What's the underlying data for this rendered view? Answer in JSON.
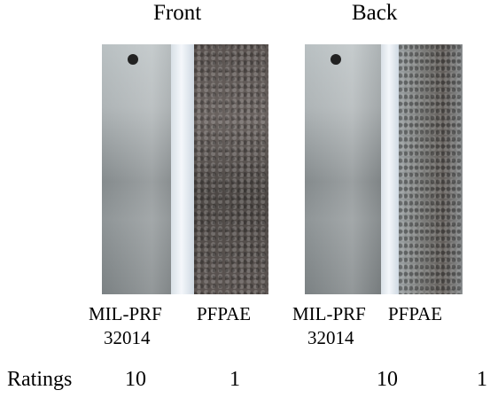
{
  "headers": {
    "front": "Front",
    "back": "Back"
  },
  "labels": {
    "front_left_line1": "MIL-PRF",
    "front_left_line2": "32014",
    "front_right": "PFPAE",
    "back_left_line1": "MIL-PRF",
    "back_left_line2": "32014",
    "back_right": "PFPAE"
  },
  "ratings": {
    "label": "Ratings",
    "front_milprf": "10",
    "front_pfpae": "1",
    "back_milprf": "10",
    "back_pfpae": "1"
  },
  "colors": {
    "steel": "#a6acae",
    "corroded": "#5a5350",
    "separator": "#eef3f7"
  }
}
